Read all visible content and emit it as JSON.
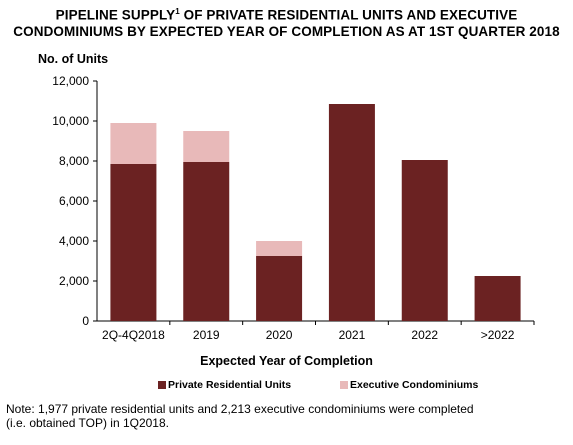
{
  "chart_data": {
    "type": "bar",
    "stacked": true,
    "title_line1_a": "PIPELINE SUPPLY",
    "title_footnote_mark": "1",
    "title_line1_b": " OF PRIVATE RESIDENTIAL UNITS AND EXECUTIVE",
    "title_line2": "CONDOMINIUMS BY EXPECTED YEAR OF COMPLETION AS AT 1ST QUARTER 2018",
    "ylabel": "No. of Units",
    "xlabel": "Expected Year of Completion",
    "categories": [
      "2Q-4Q2018",
      "2019",
      "2020",
      "2021",
      "2022",
      ">2022"
    ],
    "series": [
      {
        "name": "Private Residential Units",
        "color": "#6b2222",
        "values": [
          7850,
          7950,
          3250,
          10850,
          8050,
          2250
        ]
      },
      {
        "name": "Executive Condominiums",
        "color": "#e8b9b9",
        "values": [
          2050,
          1550,
          750,
          0,
          0,
          0
        ]
      }
    ],
    "ylim": [
      0,
      12000
    ],
    "yticks": [
      "0",
      "2,000",
      "4,000",
      "6,000",
      "8,000",
      "10,000",
      "12,000"
    ],
    "grid": false,
    "legend_position": "bottom"
  },
  "note": {
    "line1": "Note: 1,977 private residential units and 2,213 executive condominiums were completed",
    "line2": "(i.e. obtained TOP) in 1Q2018."
  }
}
